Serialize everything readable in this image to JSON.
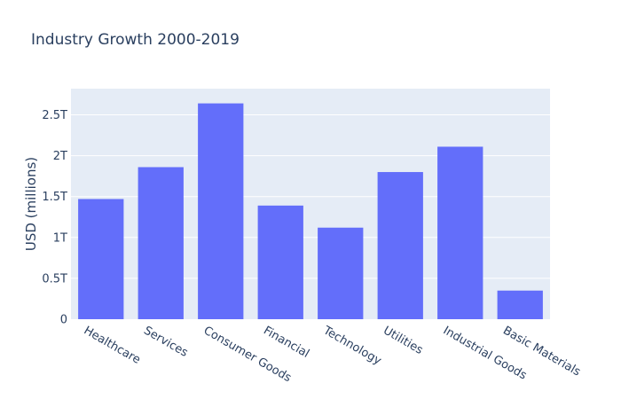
{
  "chart_data": {
    "type": "bar",
    "title": "Industry Growth 2000-2019",
    "xlabel": "",
    "ylabel": "USD (millions)",
    "categories": [
      "Healthcare",
      "Services",
      "Consumer Goods",
      "Financial",
      "Technology",
      "Utilities",
      "Industrial Goods",
      "Basic Materials"
    ],
    "values": [
      1.47,
      1.86,
      2.64,
      1.39,
      1.12,
      1.8,
      2.11,
      0.35
    ],
    "value_unit": "T",
    "ylim": [
      0,
      2.82
    ],
    "yticks": [
      0,
      0.5,
      1,
      1.5,
      2,
      2.5
    ],
    "ytick_labels": [
      "0",
      "0.5T",
      "1T",
      "1.5T",
      "2T",
      "2.5T"
    ],
    "grid": true,
    "bar_color": "#636efa",
    "plot_background": "#e5ecf6",
    "gridline_color": "#ffffff"
  }
}
